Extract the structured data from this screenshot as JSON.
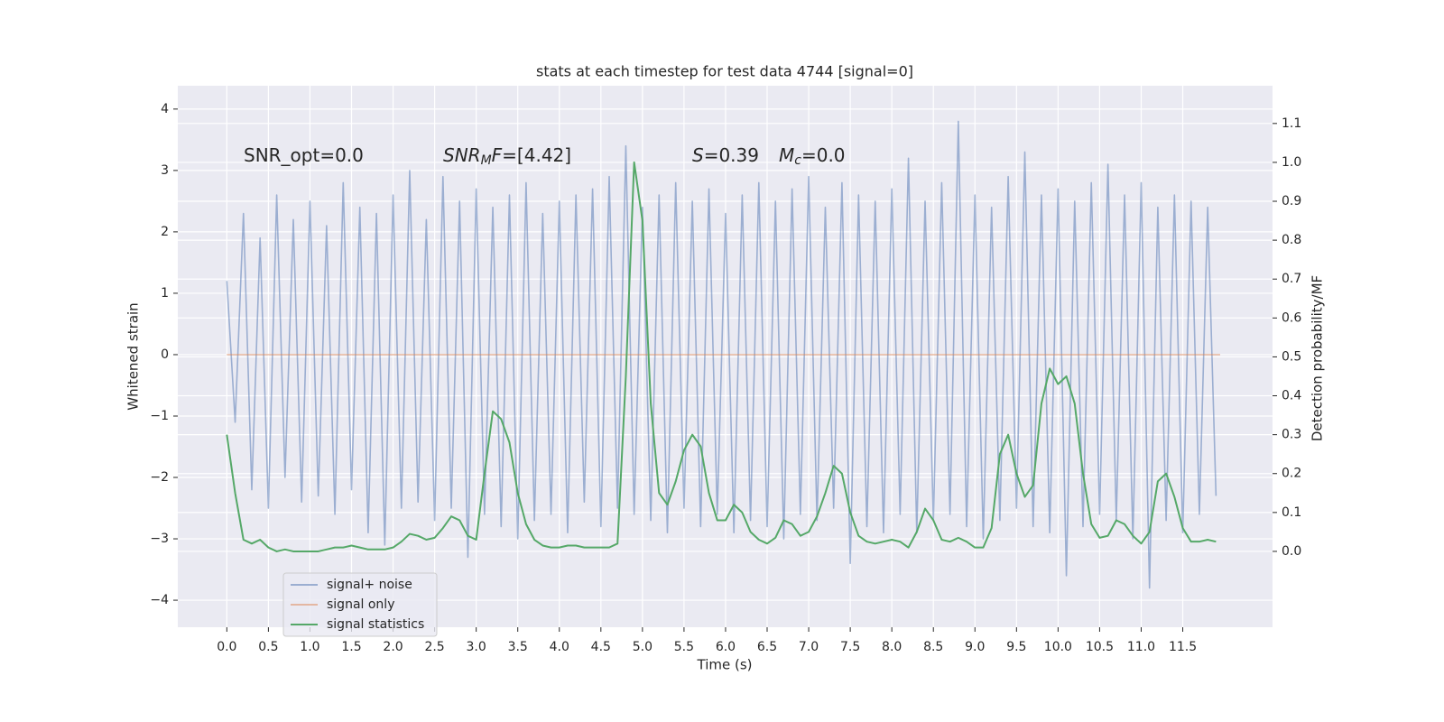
{
  "chart_data": {
    "type": "line",
    "title": "stats at each timestep for test data 4744 [signal=0]",
    "xlabel": "Time (s)",
    "ylabel": "Whitened strain",
    "y2label": "Detection probability/MF",
    "annotations": [
      [
        "SNR_opt=0.0"
      ],
      [
        "SNR",
        "M",
        "F",
        "=[4.42]"
      ],
      [
        "S",
        "=0.39",
        "M",
        "c",
        "=0.0"
      ]
    ],
    "xlim": [
      -0.59,
      12.58
    ],
    "ylim": [
      -4.44,
      4.38
    ],
    "y2lim": [
      -0.195,
      1.197
    ],
    "xticks": [
      {
        "value": 0,
        "label": "0.0"
      },
      0.5,
      {
        "value": 1,
        "label": "1.0"
      },
      1.5,
      {
        "value": 2,
        "label": "2.0"
      },
      2.5,
      {
        "value": 3,
        "label": "3.0"
      },
      3.5,
      {
        "value": 4,
        "label": "4.0"
      },
      4.5,
      {
        "value": 5,
        "label": "5.0"
      },
      5.5,
      {
        "value": 6,
        "label": "6.0"
      },
      6.5,
      {
        "value": 7,
        "label": "7.0"
      },
      7.5,
      {
        "value": 8,
        "label": "8.0"
      },
      8.5,
      {
        "value": 9,
        "label": "9.0"
      },
      9.5,
      {
        "value": 10,
        "label": "10.0"
      },
      10.5,
      {
        "value": 11,
        "label": "11.0"
      },
      11.5
    ],
    "yticks": [
      {
        "value": -4,
        "label": "−4"
      },
      {
        "value": -3,
        "label": "−3"
      },
      {
        "value": -2,
        "label": "−2"
      },
      {
        "value": -1,
        "label": "−1"
      },
      0,
      1,
      2,
      3,
      4
    ],
    "y2ticks": [
      {
        "value": 0,
        "label": "0.0"
      },
      0.1,
      0.2,
      0.3,
      0.4,
      0.5,
      0.6,
      0.7,
      0.8,
      0.9,
      {
        "value": 1,
        "label": "1.0"
      },
      1.1
    ],
    "grid": true,
    "legend": "lower left",
    "series": [
      {
        "name": "signal+ noise",
        "color": "#4c72b0",
        "opacity": 0.5,
        "x": [
          0,
          0.1,
          0.2,
          0.3,
          0.4,
          0.5,
          0.6,
          0.7,
          0.8,
          0.9,
          1,
          1.1,
          1.2,
          1.3,
          1.4,
          1.5,
          1.6,
          1.7,
          1.8,
          1.9,
          2,
          2.1,
          2.2,
          2.3,
          2.4,
          2.5,
          2.6,
          2.7,
          2.8,
          2.9,
          3,
          3.1,
          3.2,
          3.3,
          3.4,
          3.5,
          3.6,
          3.7,
          3.8,
          3.9,
          4,
          4.1,
          4.2,
          4.3,
          4.4,
          4.5,
          4.6,
          4.7,
          4.8,
          4.9,
          5,
          5.1,
          5.2,
          5.3,
          5.4,
          5.5,
          5.6,
          5.7,
          5.8,
          5.9,
          6,
          6.1,
          6.2,
          6.3,
          6.4,
          6.5,
          6.6,
          6.7,
          6.8,
          6.9,
          7,
          7.1,
          7.2,
          7.3,
          7.4,
          7.5,
          7.6,
          7.7,
          7.8,
          7.9,
          8,
          8.1,
          8.2,
          8.3,
          8.4,
          8.5,
          8.6,
          8.7,
          8.8,
          8.9,
          9,
          9.1,
          9.2,
          9.3,
          9.4,
          9.5,
          9.6,
          9.7,
          9.8,
          9.9,
          10,
          10.1,
          10.2,
          10.3,
          10.4,
          10.5,
          10.6,
          10.7,
          10.8,
          10.9,
          11,
          11.1,
          11.2,
          11.3,
          11.4,
          11.5,
          11.6,
          11.7,
          11.8,
          11.9
        ],
        "values": [
          1.2,
          -1.1,
          2.3,
          -2.2,
          1.9,
          -2.5,
          2.6,
          -2.0,
          2.2,
          -2.4,
          2.5,
          -2.3,
          2.1,
          -2.6,
          2.8,
          -2.2,
          2.4,
          -2.9,
          2.3,
          -3.1,
          2.6,
          -2.5,
          3.0,
          -2.4,
          2.2,
          -2.7,
          2.9,
          -2.5,
          2.5,
          -3.3,
          2.7,
          -2.6,
          2.4,
          -2.8,
          2.6,
          -3.0,
          2.8,
          -2.7,
          2.3,
          -2.6,
          2.5,
          -2.9,
          2.6,
          -2.4,
          2.7,
          -2.8,
          2.9,
          -2.5,
          3.4,
          -2.6,
          2.4,
          -2.7,
          2.6,
          -2.9,
          2.8,
          -2.5,
          2.5,
          -2.8,
          2.7,
          -2.6,
          2.3,
          -2.9,
          2.6,
          -2.7,
          2.8,
          -2.8,
          2.5,
          -3.0,
          2.7,
          -2.6,
          2.9,
          -2.7,
          2.4,
          -2.5,
          2.8,
          -3.4,
          2.6,
          -2.8,
          2.5,
          -2.9,
          2.7,
          -2.6,
          3.2,
          -2.9,
          2.5,
          -2.7,
          2.8,
          -2.6,
          3.8,
          -2.8,
          2.6,
          -3.0,
          2.4,
          -2.7,
          2.9,
          -2.5,
          3.3,
          -2.8,
          2.6,
          -2.9,
          2.7,
          -3.6,
          2.5,
          -2.8,
          2.8,
          -2.6,
          3.1,
          -2.7,
          2.6,
          -3.0,
          2.8,
          -3.8,
          2.4,
          -2.7,
          2.6,
          -2.9,
          2.5,
          -2.6,
          2.4,
          -2.3
        ]
      },
      {
        "name": "signal only",
        "color": "#dd8452",
        "opacity": 0.5,
        "x": [
          0,
          11.95
        ],
        "values": [
          0,
          0
        ]
      },
      {
        "name": "signal statistics",
        "color": "#55a868",
        "opacity": 1,
        "axis": "y2",
        "x": [
          0,
          0.1,
          0.2,
          0.3,
          0.4,
          0.5,
          0.6,
          0.7,
          0.8,
          0.9,
          1,
          1.1,
          1.2,
          1.3,
          1.4,
          1.5,
          1.6,
          1.7,
          1.8,
          1.9,
          2,
          2.1,
          2.2,
          2.3,
          2.4,
          2.5,
          2.6,
          2.7,
          2.8,
          2.9,
          3,
          3.1,
          3.2,
          3.3,
          3.4,
          3.5,
          3.6,
          3.7,
          3.8,
          3.9,
          4,
          4.1,
          4.2,
          4.3,
          4.4,
          4.5,
          4.6,
          4.7,
          4.8,
          4.9,
          5,
          5.1,
          5.2,
          5.3,
          5.4,
          5.5,
          5.6,
          5.7,
          5.8,
          5.9,
          6,
          6.1,
          6.2,
          6.3,
          6.4,
          6.5,
          6.6,
          6.7,
          6.8,
          6.9,
          7,
          7.1,
          7.2,
          7.3,
          7.4,
          7.5,
          7.6,
          7.7,
          7.8,
          7.9,
          8,
          8.1,
          8.2,
          8.3,
          8.4,
          8.5,
          8.6,
          8.7,
          8.8,
          8.9,
          9,
          9.1,
          9.2,
          9.3,
          9.4,
          9.5,
          9.6,
          9.7,
          9.8,
          9.9,
          10,
          10.1,
          10.2,
          10.3,
          10.4,
          10.5,
          10.6,
          10.7,
          10.8,
          10.9,
          11,
          11.1,
          11.2,
          11.3,
          11.4,
          11.5,
          11.6,
          11.7,
          11.8,
          11.9
        ],
        "values": [
          0.3,
          0.15,
          0.03,
          0.02,
          0.03,
          0.01,
          0.0,
          0.005,
          0.0,
          0.0,
          0.0,
          0.0,
          0.005,
          0.01,
          0.01,
          0.015,
          0.01,
          0.005,
          0.005,
          0.005,
          0.01,
          0.025,
          0.045,
          0.04,
          0.03,
          0.035,
          0.06,
          0.09,
          0.08,
          0.04,
          0.03,
          0.2,
          0.36,
          0.34,
          0.28,
          0.15,
          0.07,
          0.03,
          0.015,
          0.01,
          0.01,
          0.015,
          0.015,
          0.01,
          0.01,
          0.01,
          0.01,
          0.02,
          0.45,
          1.0,
          0.85,
          0.38,
          0.15,
          0.12,
          0.18,
          0.26,
          0.3,
          0.27,
          0.15,
          0.08,
          0.08,
          0.12,
          0.1,
          0.05,
          0.03,
          0.02,
          0.035,
          0.08,
          0.07,
          0.04,
          0.05,
          0.09,
          0.15,
          0.22,
          0.2,
          0.1,
          0.04,
          0.025,
          0.02,
          0.025,
          0.03,
          0.025,
          0.01,
          0.05,
          0.11,
          0.08,
          0.03,
          0.025,
          0.035,
          0.025,
          0.01,
          0.01,
          0.06,
          0.25,
          0.3,
          0.2,
          0.14,
          0.17,
          0.38,
          0.47,
          0.43,
          0.45,
          0.38,
          0.2,
          0.07,
          0.035,
          0.04,
          0.08,
          0.07,
          0.04,
          0.02,
          0.05,
          0.18,
          0.2,
          0.14,
          0.06,
          0.025,
          0.025,
          0.03,
          0.025
        ]
      }
    ]
  }
}
